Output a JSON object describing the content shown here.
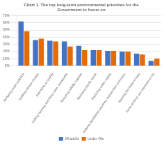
{
  "chart_data": {
    "type": "bar",
    "title": "Chart 1. The top long-term environmental priorities for the\nGovernment to focus on",
    "categories": [
      "Reducing water pollution",
      "Tackling climate change",
      "Improving air quality",
      "Making housing and living more sustainable",
      "Restoring wildlife habitats",
      "Reducing plastic waste",
      "Improving water supply",
      "Helping developing countries reduce their emissions",
      "Banning the trade in ivory",
      "None of these are important to me"
    ],
    "series": [
      {
        "name": "All adults",
        "color": "#4472C4",
        "values": [
          62,
          36,
          35,
          34,
          28,
          22,
          21,
          20,
          17,
          7
        ]
      },
      {
        "name": "Under 40s",
        "color": "#E36C09",
        "values": [
          48,
          38,
          34,
          27,
          22,
          22,
          21,
          20,
          16,
          10
        ]
      }
    ],
    "ylim": [
      0,
      70
    ],
    "yticks": [
      {
        "value": 0,
        "label": "0%"
      },
      {
        "value": 10,
        "label": "10%"
      },
      {
        "value": 20,
        "label": "20%"
      },
      {
        "value": 30,
        "label": "30%"
      },
      {
        "value": 40,
        "label": "40%"
      },
      {
        "value": 50,
        "label": "50%"
      },
      {
        "value": 60,
        "label": "60%"
      },
      {
        "value": 70,
        "label": "70%"
      }
    ],
    "grid": true,
    "legend": "bottom"
  }
}
